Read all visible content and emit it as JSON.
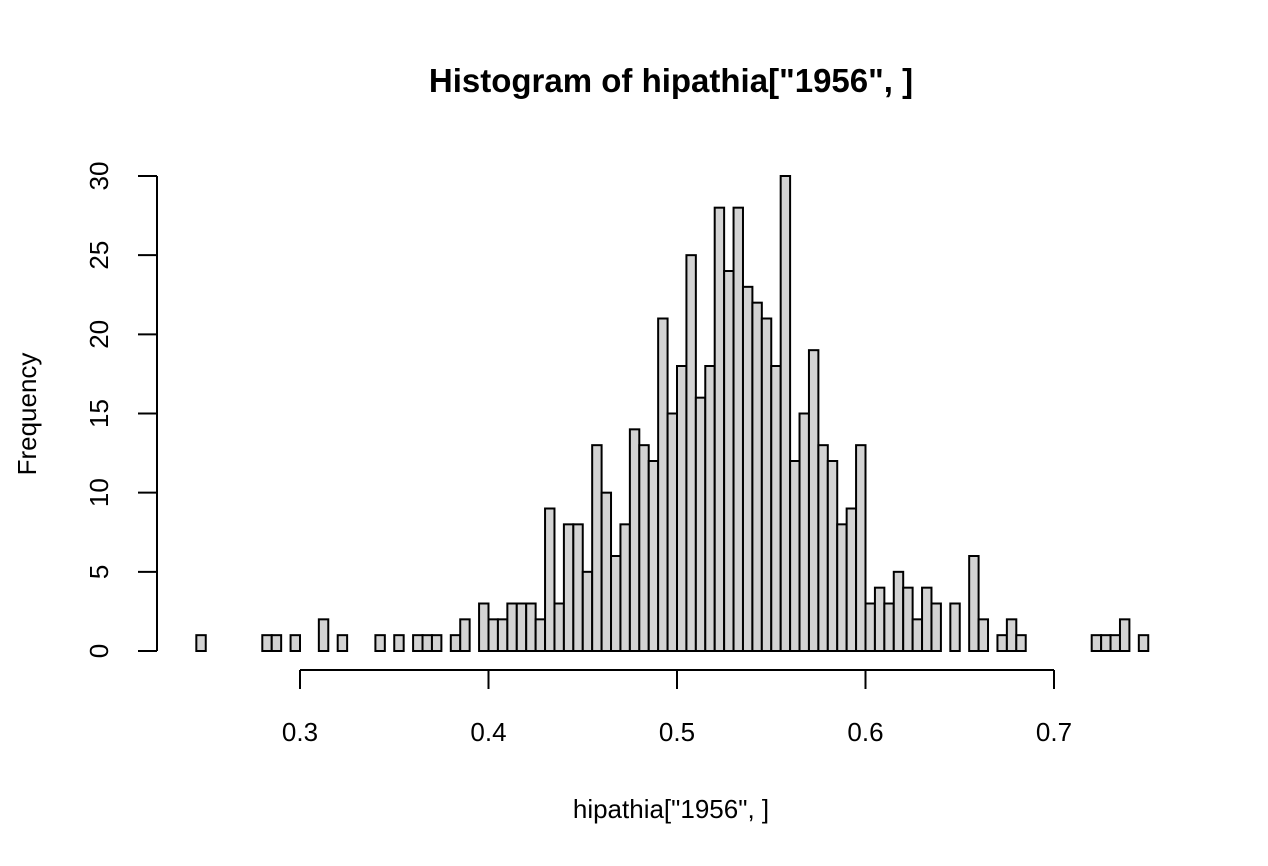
{
  "chart_data": {
    "type": "bar",
    "title": "Histogram of hipathia[\"1956\", ]",
    "xlabel": "hipathia[\"1956\", ]",
    "ylabel": "Frequency",
    "bin_start": 0.245,
    "bin_width": 0.005,
    "values": [
      1,
      0,
      0,
      0,
      0,
      0,
      0,
      1,
      1,
      0,
      1,
      0,
      0,
      2,
      0,
      1,
      0,
      0,
      0,
      1,
      0,
      1,
      0,
      1,
      1,
      1,
      0,
      1,
      2,
      0,
      3,
      2,
      2,
      3,
      3,
      3,
      2,
      9,
      3,
      8,
      8,
      5,
      13,
      10,
      6,
      8,
      14,
      13,
      12,
      21,
      15,
      18,
      25,
      16,
      18,
      28,
      24,
      28,
      23,
      22,
      21,
      18,
      30,
      12,
      15,
      19,
      13,
      12,
      8,
      9,
      13,
      3,
      4,
      3,
      5,
      4,
      2,
      4,
      3,
      0,
      3,
      0,
      6,
      2,
      0,
      1,
      2,
      1,
      0,
      0,
      0,
      0,
      0,
      0,
      0,
      1,
      1,
      1,
      2,
      0,
      1
    ],
    "xlim": [
      0.25,
      0.75
    ],
    "ylim": [
      0,
      30
    ],
    "x_ticks": [
      "0.3",
      "0.4",
      "0.5",
      "0.6",
      "0.7"
    ],
    "y_ticks": [
      "0",
      "5",
      "10",
      "15",
      "20",
      "25",
      "30"
    ],
    "grid": false,
    "bar_color": "#d3d3d3",
    "edge_color": "#000000"
  }
}
